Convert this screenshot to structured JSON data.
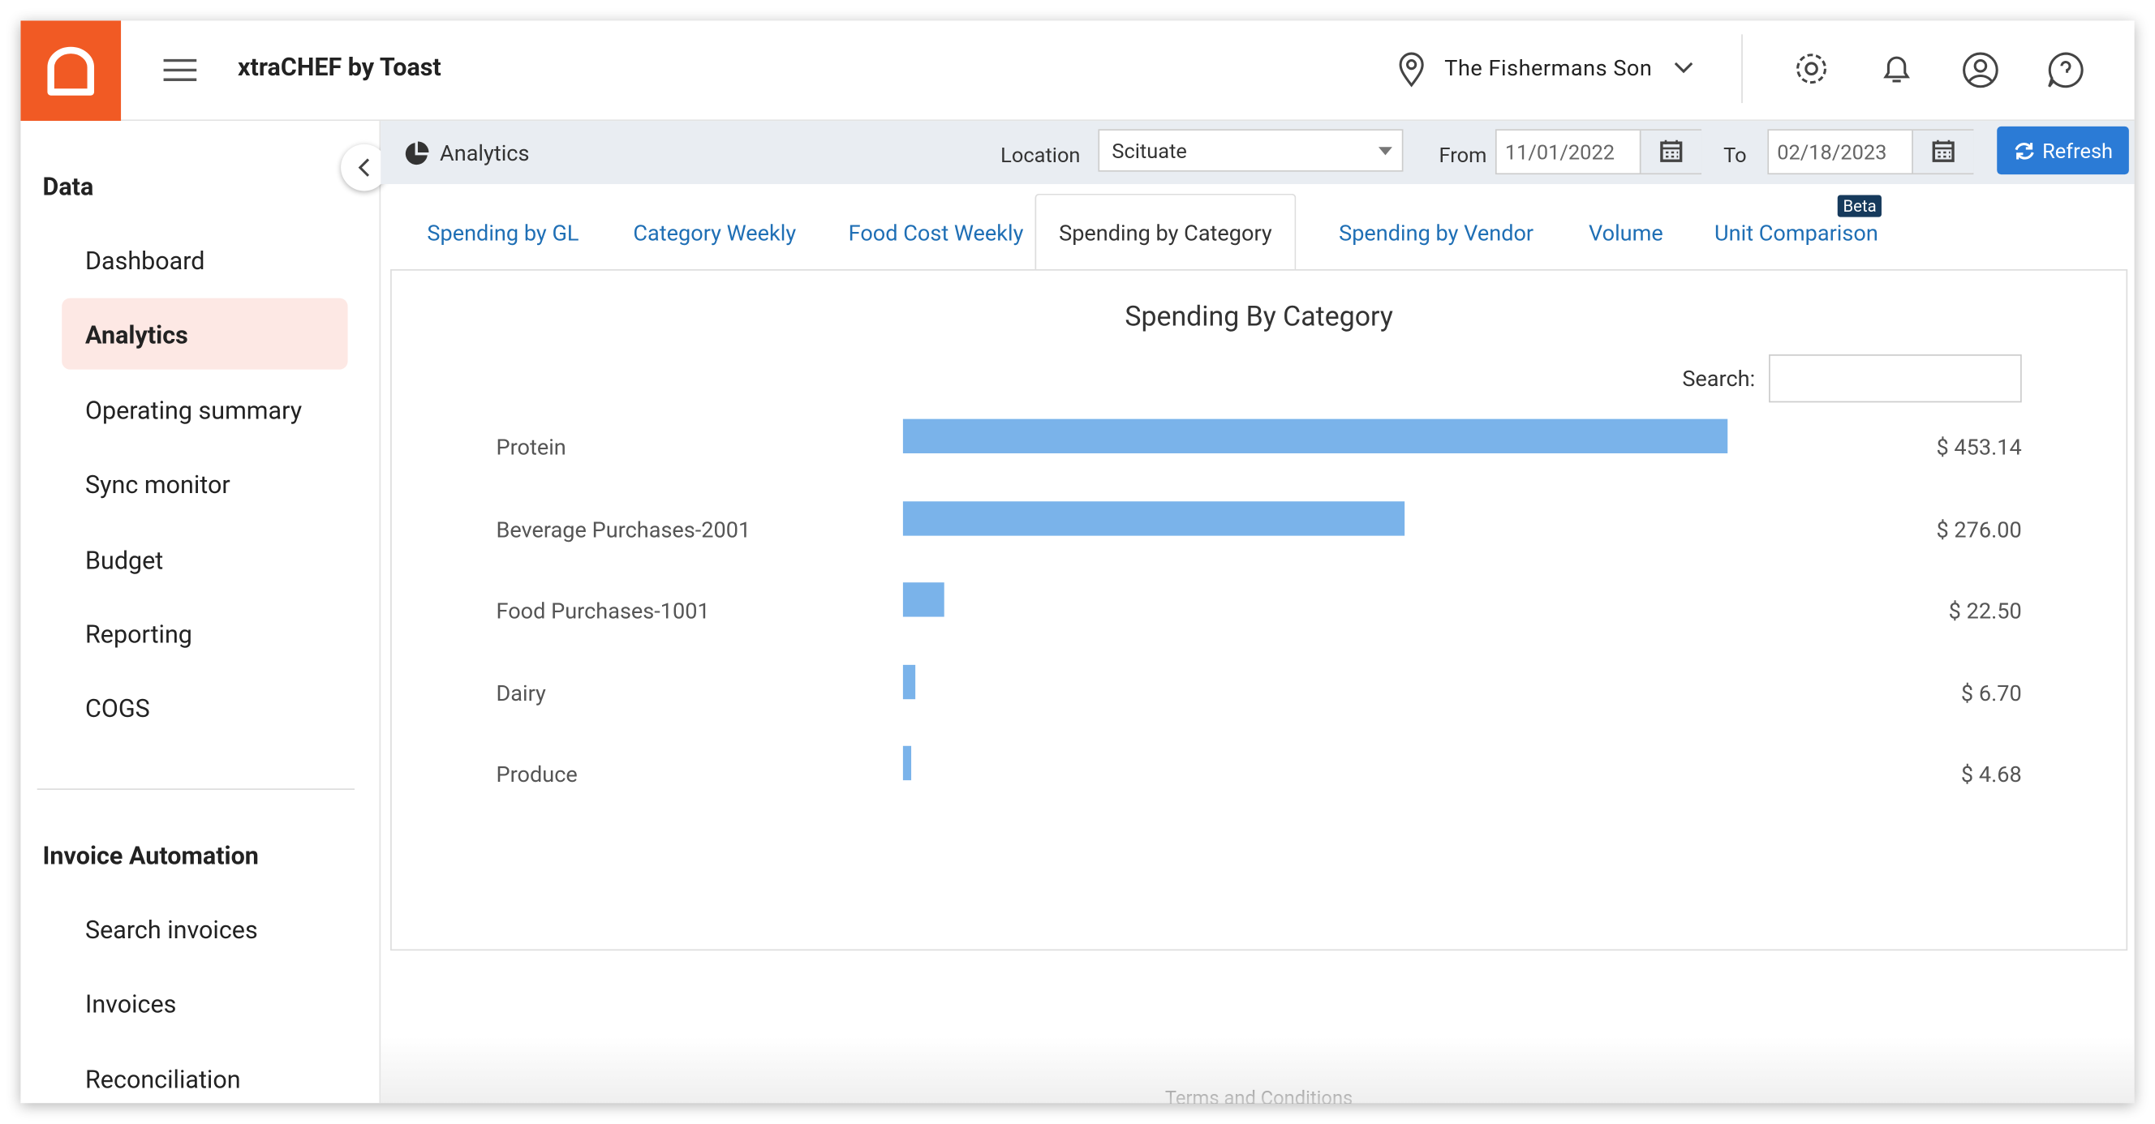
{
  "header": {
    "app_name": "xtraCHEF by Toast",
    "location": "The Fishermans Son"
  },
  "sidebar": {
    "sections": [
      {
        "title": "Data",
        "items": [
          "Dashboard",
          "Analytics",
          "Operating summary",
          "Sync monitor",
          "Budget",
          "Reporting",
          "COGS"
        ],
        "active": 1
      },
      {
        "title": "Invoice Automation",
        "items": [
          "Search invoices",
          "Invoices",
          "Reconciliation"
        ]
      }
    ]
  },
  "toolbar": {
    "title": "Analytics",
    "location_label": "Location",
    "location_value": "Scituate",
    "from_label": "From",
    "from_value": "11/01/2022",
    "to_label": "To",
    "to_value": "02/18/2023",
    "refresh": "Refresh"
  },
  "tabs": {
    "items": [
      "Spending by GL",
      "Category Weekly",
      "Food Cost Weekly",
      "Spending by Category",
      "Spending by Vendor",
      "Volume",
      "Unit Comparison"
    ],
    "active": 3,
    "badge": "Beta"
  },
  "chart_data": {
    "type": "bar",
    "orientation": "horizontal",
    "title": "Spending By Category",
    "search_label": "Search:",
    "categories": [
      "Protein",
      "Beverage Purchases-2001",
      "Food Purchases-1001",
      "Dairy",
      "Produce"
    ],
    "values": [
      453.14,
      276.0,
      22.5,
      6.7,
      4.68
    ],
    "value_labels": [
      "$ 453.14",
      "$ 276.00",
      "$ 22.50",
      "$ 6.70",
      "$ 4.68"
    ],
    "color": "#7ab3ea"
  },
  "footer": {
    "link": "Terms and Conditions"
  }
}
